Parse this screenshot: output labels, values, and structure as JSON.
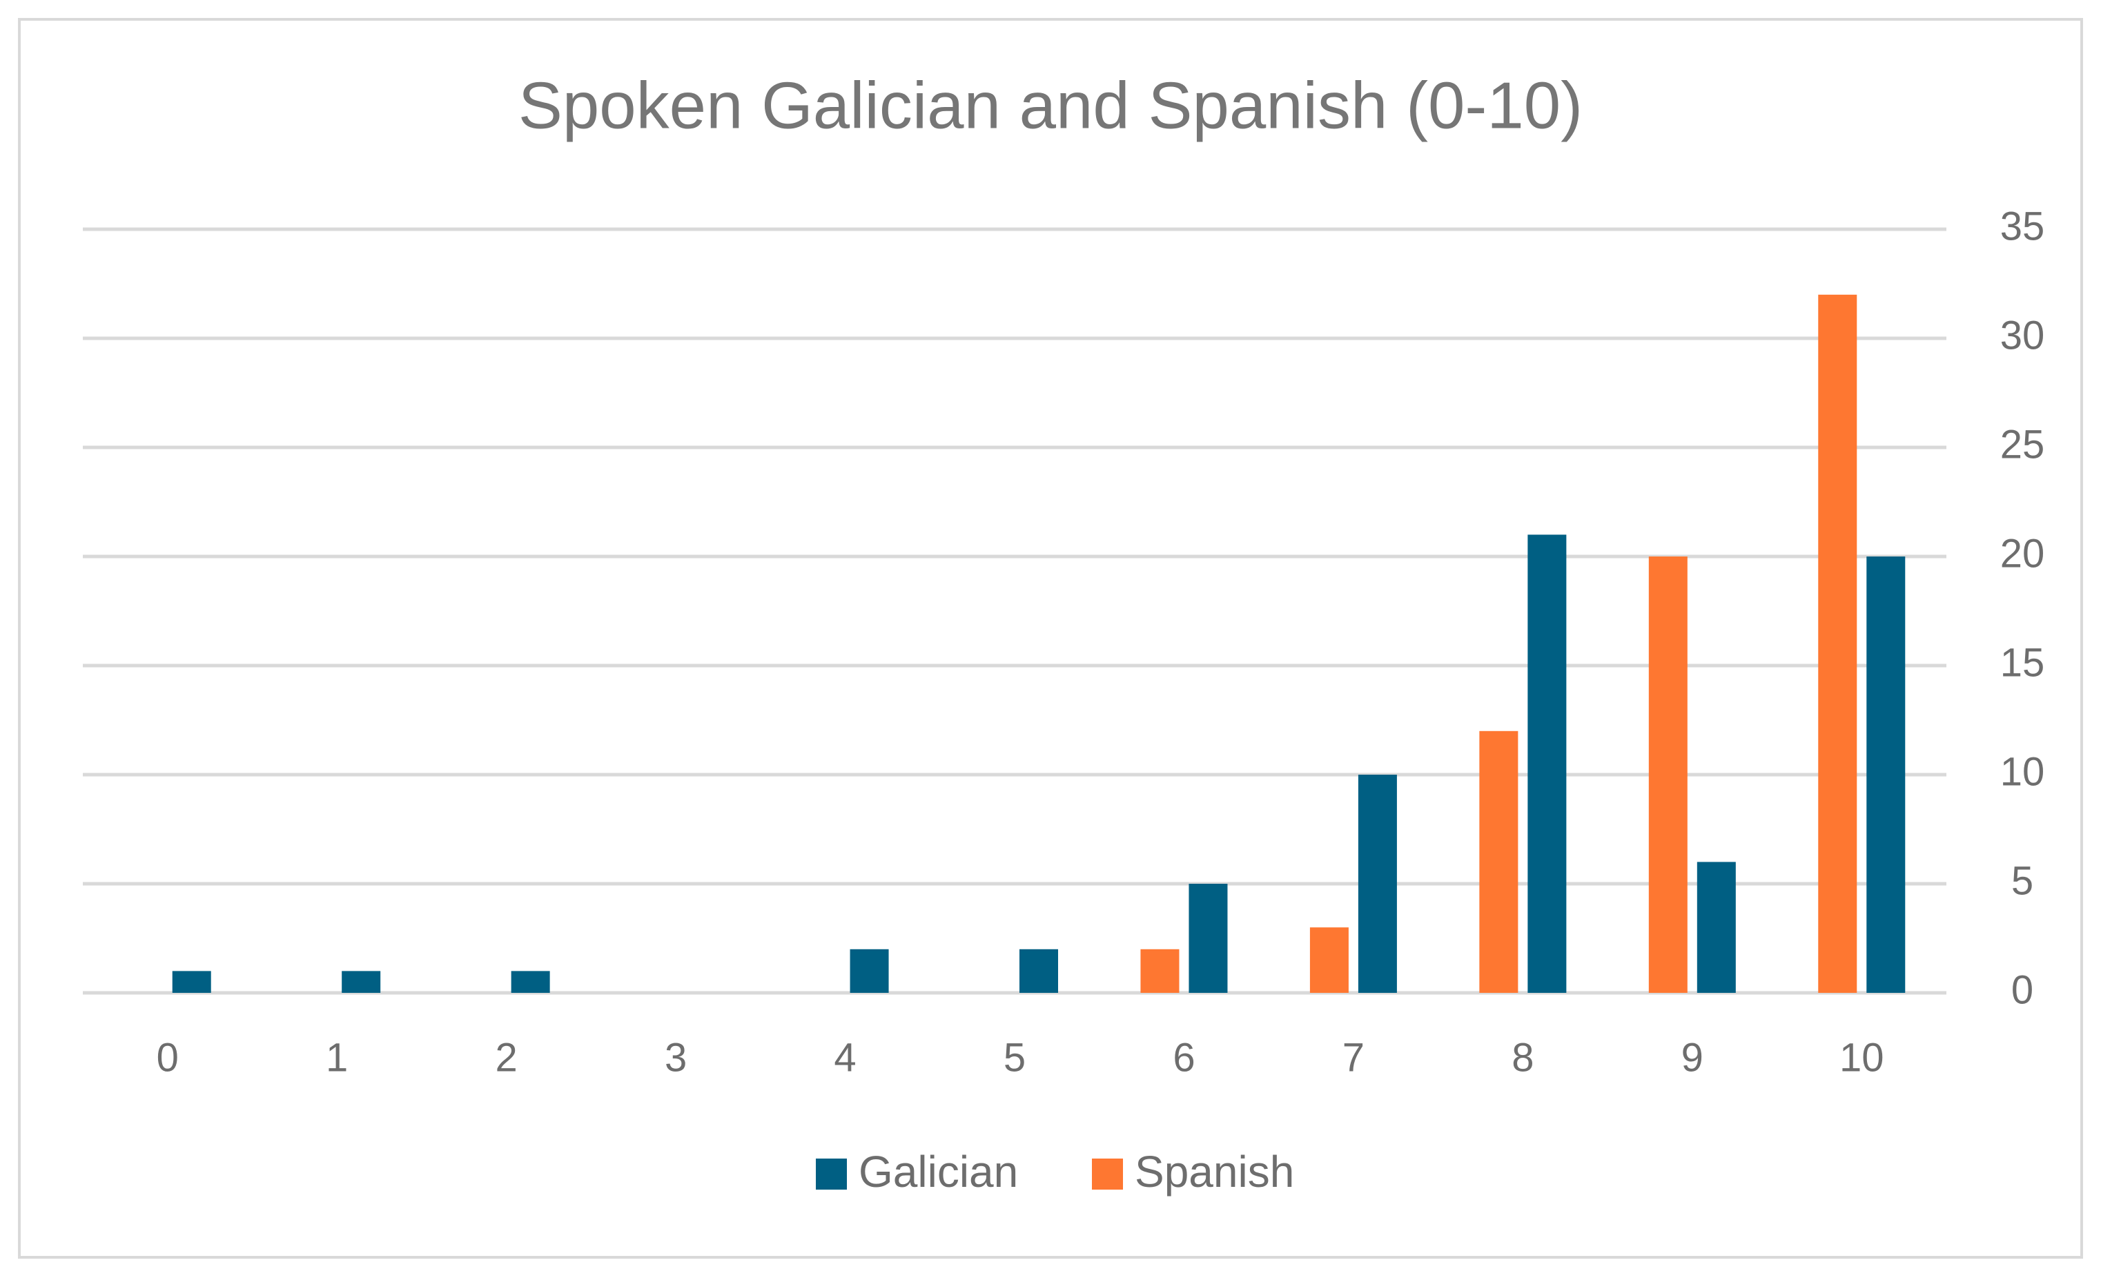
{
  "chart_data": {
    "type": "bar",
    "title": "Spoken Galician and Spanish (0-10)",
    "categories": [
      "0",
      "1",
      "2",
      "3",
      "4",
      "5",
      "6",
      "7",
      "8",
      "9",
      "10"
    ],
    "series": [
      {
        "name": "Galician",
        "color": "#005f83",
        "values": [
          1,
          1,
          1,
          0,
          2,
          2,
          5,
          10,
          21,
          6,
          20
        ]
      },
      {
        "name": "Spanish",
        "color": "#fe7731",
        "values": [
          0,
          0,
          0,
          0,
          0,
          0,
          2,
          3,
          12,
          20,
          32
        ]
      }
    ],
    "ylim": [
      0,
      35
    ],
    "yticks": [
      0,
      5,
      10,
      15,
      20,
      25,
      30,
      35
    ],
    "grid": true,
    "legend": "bottom"
  }
}
